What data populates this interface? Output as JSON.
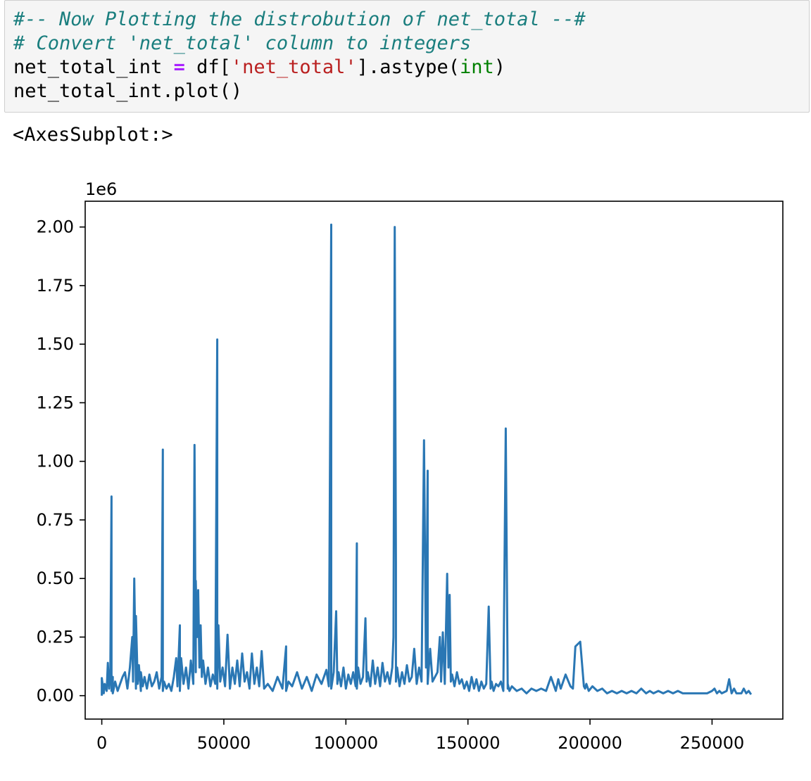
{
  "code_cell": {
    "lines": [
      [
        {
          "t": "#-- Now Plotting the distrobution of net_total --#",
          "c": "cm"
        }
      ],
      [
        {
          "t": "# Convert 'net_total' column to integers",
          "c": "cm"
        }
      ],
      [
        {
          "t": "net_total_int ",
          "c": ""
        },
        {
          "t": "=",
          "c": "op"
        },
        {
          "t": " df[",
          "c": ""
        },
        {
          "t": "'net_total'",
          "c": "str"
        },
        {
          "t": "].astype(",
          "c": ""
        },
        {
          "t": "int",
          "c": "bi"
        },
        {
          "t": ")",
          "c": ""
        }
      ],
      [
        {
          "t": "net_total_int.plot()",
          "c": ""
        }
      ]
    ]
  },
  "output": {
    "text": "<AxesSubplot:>"
  },
  "chart_data": {
    "type": "line",
    "title": "",
    "xlabel": "",
    "ylabel": "",
    "offset_label": "1e6",
    "xlim": [
      -6800,
      279000
    ],
    "ylim": [
      -0.1,
      2.11
    ],
    "x_ticks": [
      0,
      50000,
      100000,
      150000,
      200000,
      250000
    ],
    "x_tick_labels": [
      "0",
      "50000",
      "100000",
      "150000",
      "200000",
      "250000"
    ],
    "y_ticks": [
      0,
      0.25,
      0.5,
      0.75,
      1.0,
      1.25,
      1.5,
      1.75,
      2.0
    ],
    "y_tick_labels": [
      "0.00",
      "0.25",
      "0.50",
      "0.75",
      "1.00",
      "1.25",
      "1.50",
      "1.75",
      "2.00"
    ],
    "grid": false,
    "line_color": "#2a77b4",
    "series": [
      {
        "x": [
          0,
          0,
          800,
          1200,
          2000,
          2500,
          3000,
          3500,
          4000,
          4000,
          4500,
          4500,
          5500,
          6500,
          7500,
          8500,
          9500,
          10500,
          11500,
          12500,
          12800,
          13300,
          14000,
          14000,
          14700,
          15200,
          16000,
          16000,
          16800,
          17500,
          18500,
          19500,
          20500,
          21500,
          22500,
          23500,
          24500,
          25000,
          25000,
          25500,
          26500,
          27500,
          28500,
          29500,
          30500,
          31000,
          32000,
          32000,
          32500,
          33500,
          34500,
          35500,
          36500,
          37500,
          38000,
          38500,
          38500,
          39000,
          39500,
          40000,
          40500,
          41000,
          41500,
          42500,
          43500,
          44500,
          45500,
          46500,
          47300,
          47300,
          47800,
          48500,
          49500,
          50500,
          51500,
          52500,
          53500,
          54500,
          55500,
          56500,
          57500,
          58500,
          59500,
          60500,
          61500,
          62500,
          63500,
          64500,
          65500,
          66500,
          68000,
          70000,
          72000,
          74000,
          75500,
          75500,
          76500,
          78000,
          80000,
          82000,
          84000,
          86000,
          88000,
          90000,
          92000,
          93000,
          94000,
          94000,
          95000,
          96000,
          96500,
          97000,
          98000,
          99000,
          100000,
          101000,
          102000,
          103000,
          104000,
          104500,
          104500,
          105000,
          106000,
          107000,
          108000,
          108500,
          109000,
          110000,
          111000,
          112000,
          113000,
          114000,
          115000,
          116000,
          117000,
          118000,
          119000,
          119500,
          120000,
          120500,
          120500,
          121000,
          122000,
          123000,
          124000,
          125000,
          126000,
          127000,
          128000,
          129000,
          130000,
          131000,
          132000,
          132800,
          133500,
          133500,
          134500,
          135500,
          136500,
          137500,
          138500,
          139000,
          139700,
          140500,
          141500,
          142000,
          142500,
          143000,
          143500,
          144500,
          145500,
          146500,
          147500,
          148500,
          149500,
          150500,
          151500,
          152500,
          153500,
          154500,
          155500,
          156500,
          157500,
          158500,
          159300,
          159700,
          160500,
          161500,
          162500,
          163500,
          164500,
          165500,
          166300,
          166300,
          167000,
          168000,
          170000,
          172000,
          174000,
          176000,
          178000,
          180000,
          182000,
          184000,
          186000,
          187000,
          188000,
          190000,
          192000,
          193000,
          194000,
          196000,
          197500,
          198000,
          198500,
          199500,
          201000,
          203000,
          205000,
          207000,
          209000,
          211000,
          213000,
          215000,
          217000,
          219000,
          221000,
          223000,
          224500,
          226000,
          228000,
          230000,
          232000,
          234000,
          236000,
          238000,
          240000,
          242000,
          244000,
          246000,
          248000,
          250000,
          251000,
          252000,
          253000,
          254000,
          256000,
          257000,
          258000,
          259000,
          260000,
          261000,
          262000,
          263000,
          264000,
          265000,
          266000
        ],
        "y": [
          0,
          0.075,
          0.01,
          0.05,
          0.02,
          0.14,
          0.03,
          0.1,
          0.85,
          0.02,
          0.08,
          0.01,
          0.06,
          0.02,
          0.05,
          0.08,
          0.1,
          0.03,
          0.12,
          0.25,
          0.06,
          0.5,
          0.03,
          0.34,
          0.05,
          0.13,
          0.02,
          0.1,
          0.04,
          0.08,
          0.03,
          0.09,
          0.04,
          0.06,
          0.1,
          0.03,
          0.08,
          1.05,
          0.02,
          0.06,
          0.03,
          0.05,
          0.02,
          0.08,
          0.16,
          0.04,
          0.3,
          0.02,
          0.16,
          0.05,
          0.12,
          0.03,
          0.15,
          0.05,
          1.07,
          0.1,
          0.49,
          0.25,
          0.45,
          0.12,
          0.3,
          0.08,
          0.15,
          0.05,
          0.12,
          0.04,
          0.09,
          0.05,
          1.52,
          0.03,
          0.3,
          0.06,
          0.12,
          0.04,
          0.26,
          0.03,
          0.12,
          0.05,
          0.15,
          0.04,
          0.18,
          0.06,
          0.1,
          0.03,
          0.18,
          0.05,
          0.12,
          0.04,
          0.19,
          0.03,
          0.05,
          0.02,
          0.08,
          0.03,
          0.21,
          0.02,
          0.06,
          0.04,
          0.1,
          0.03,
          0.08,
          0.02,
          0.09,
          0.05,
          0.11,
          0.04,
          2.01,
          0.03,
          0.1,
          0.36,
          0.05,
          0.1,
          0.04,
          0.12,
          0.03,
          0.09,
          0.05,
          0.1,
          0.04,
          0.65,
          0.03,
          0.12,
          0.05,
          0.08,
          0.33,
          0.06,
          0.1,
          0.04,
          0.15,
          0.05,
          0.12,
          0.04,
          0.14,
          0.06,
          0.1,
          0.05,
          0.12,
          0.25,
          2.0,
          0.57,
          0.06,
          0.12,
          0.04,
          0.1,
          0.05,
          0.13,
          0.06,
          0.08,
          0.2,
          0.05,
          0.12,
          0.06,
          1.09,
          0.12,
          0.96,
          0.05,
          0.2,
          0.06,
          0.08,
          0.1,
          0.25,
          0.06,
          0.27,
          0.05,
          0.52,
          0.12,
          0.43,
          0.06,
          0.09,
          0.04,
          0.1,
          0.05,
          0.07,
          0.03,
          0.06,
          0.02,
          0.08,
          0.03,
          0.07,
          0.02,
          0.06,
          0.03,
          0.05,
          0.38,
          0.03,
          0.06,
          0.02,
          0.05,
          0.04,
          0.06,
          0.02,
          1.14,
          0.03,
          0.05,
          0.02,
          0.04,
          0.02,
          0.03,
          0.01,
          0.03,
          0.02,
          0.03,
          0.02,
          0.08,
          0.02,
          0.07,
          0.03,
          0.09,
          0.04,
          0.03,
          0.21,
          0.23,
          0.04,
          0.03,
          0.05,
          0.02,
          0.04,
          0.02,
          0.03,
          0.01,
          0.02,
          0.01,
          0.02,
          0.01,
          0.02,
          0.01,
          0.03,
          0.01,
          0.02,
          0.01,
          0.02,
          0.01,
          0.02,
          0.01,
          0.02,
          0.01,
          0.01,
          0.01,
          0.01,
          0.01,
          0.01,
          0.02,
          0.03,
          0.01,
          0.02,
          0.01,
          0.02,
          0.07,
          0.01,
          0.03,
          0.01,
          0.01,
          0.01,
          0.03,
          0.01,
          0.02,
          0.005
        ]
      }
    ]
  }
}
